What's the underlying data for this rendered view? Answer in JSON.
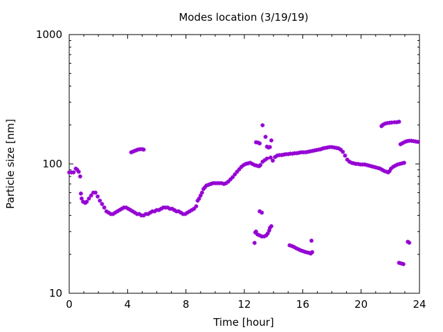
{
  "chart_data": {
    "type": "scatter",
    "title": "Modes location (3/19/19)",
    "xlabel": "Time [hour]",
    "ylabel": "Particle size [nm]",
    "xlim": [
      0,
      24
    ],
    "ylim": [
      10,
      1000
    ],
    "y_scale": "log",
    "x_ticks": [
      0,
      4,
      8,
      12,
      16,
      20,
      24
    ],
    "x_tick_labels": [
      "0",
      "4",
      "8",
      "12",
      "16",
      "20",
      "24"
    ],
    "y_ticks": [
      10,
      100,
      1000
    ],
    "y_tick_labels": [
      "10",
      "100",
      "1000"
    ],
    "grid": false,
    "legend": "none",
    "marker_color": "#9400d3",
    "series": [
      {
        "points": [
          [
            0.0,
            86
          ],
          [
            0.15,
            86
          ],
          [
            0.3,
            86
          ],
          [
            0.45,
            92
          ],
          [
            0.55,
            90
          ],
          [
            0.65,
            87
          ],
          [
            0.75,
            80
          ],
          [
            0.8,
            59
          ],
          [
            0.85,
            54
          ],
          [
            0.95,
            51
          ],
          [
            1.1,
            50
          ],
          [
            1.2,
            51
          ],
          [
            1.35,
            54
          ],
          [
            1.5,
            57
          ],
          [
            1.65,
            60
          ],
          [
            1.8,
            60
          ],
          [
            1.95,
            56
          ],
          [
            2.1,
            52
          ],
          [
            2.25,
            49
          ],
          [
            2.4,
            46
          ],
          [
            2.55,
            43
          ],
          [
            2.7,
            42
          ],
          [
            2.85,
            41
          ],
          [
            3.0,
            41
          ],
          [
            3.15,
            42
          ],
          [
            3.3,
            43
          ],
          [
            3.45,
            44
          ],
          [
            3.6,
            45
          ],
          [
            3.75,
            46
          ],
          [
            3.9,
            46
          ],
          [
            4.05,
            45
          ],
          [
            4.2,
            44
          ],
          [
            4.35,
            43
          ],
          [
            4.5,
            42
          ],
          [
            4.65,
            41
          ],
          [
            4.8,
            41
          ],
          [
            4.95,
            40
          ],
          [
            5.1,
            40
          ],
          [
            5.25,
            41
          ],
          [
            5.4,
            41
          ],
          [
            5.55,
            42
          ],
          [
            5.7,
            43
          ],
          [
            5.85,
            43
          ],
          [
            6.0,
            44
          ],
          [
            6.15,
            44
          ],
          [
            6.3,
            45
          ],
          [
            6.45,
            46
          ],
          [
            6.6,
            46
          ],
          [
            6.75,
            46
          ],
          [
            6.9,
            45
          ],
          [
            7.05,
            45
          ],
          [
            7.2,
            44
          ],
          [
            7.35,
            43
          ],
          [
            7.5,
            43
          ],
          [
            7.65,
            42
          ],
          [
            7.8,
            41
          ],
          [
            7.95,
            41
          ],
          [
            8.1,
            42
          ],
          [
            8.25,
            43
          ],
          [
            8.4,
            44
          ],
          [
            8.55,
            45
          ],
          [
            8.7,
            47
          ],
          [
            8.8,
            52
          ],
          [
            8.9,
            54
          ],
          [
            9.0,
            57
          ],
          [
            9.1,
            60
          ],
          [
            9.2,
            64
          ],
          [
            9.3,
            66
          ],
          [
            9.4,
            68
          ],
          [
            9.55,
            69
          ],
          [
            9.7,
            70
          ],
          [
            9.85,
            71
          ],
          [
            10.0,
            71
          ],
          [
            10.15,
            71
          ],
          [
            10.3,
            71
          ],
          [
            10.45,
            71
          ],
          [
            10.6,
            70
          ],
          [
            10.75,
            71
          ],
          [
            10.9,
            73
          ],
          [
            11.05,
            76
          ],
          [
            11.2,
            79
          ],
          [
            11.35,
            83
          ],
          [
            11.5,
            87
          ],
          [
            11.65,
            91
          ],
          [
            11.8,
            95
          ],
          [
            11.95,
            98
          ],
          [
            12.1,
            100
          ],
          [
            12.25,
            101
          ],
          [
            12.4,
            102
          ],
          [
            12.55,
            100
          ],
          [
            12.7,
            98
          ],
          [
            12.85,
            97
          ],
          [
            13.0,
            96
          ],
          [
            13.1,
            98
          ],
          [
            13.25,
            104
          ],
          [
            13.4,
            107
          ],
          [
            13.55,
            110
          ],
          [
            13.8,
            112
          ],
          [
            13.95,
            106
          ],
          [
            14.1,
            113
          ],
          [
            14.25,
            116
          ],
          [
            14.4,
            117
          ],
          [
            14.55,
            117
          ],
          [
            14.7,
            118
          ],
          [
            14.85,
            119
          ],
          [
            15.0,
            119
          ],
          [
            15.15,
            120
          ],
          [
            15.3,
            120
          ],
          [
            15.45,
            121
          ],
          [
            15.6,
            121
          ],
          [
            15.75,
            122
          ],
          [
            15.9,
            123
          ],
          [
            16.05,
            123
          ],
          [
            16.2,
            123
          ],
          [
            16.35,
            124
          ],
          [
            16.5,
            125
          ],
          [
            16.65,
            126
          ],
          [
            16.8,
            127
          ],
          [
            16.95,
            128
          ],
          [
            17.1,
            129
          ],
          [
            17.25,
            130
          ],
          [
            17.4,
            132
          ],
          [
            17.55,
            133
          ],
          [
            17.7,
            134
          ],
          [
            17.85,
            135
          ],
          [
            18.0,
            135
          ],
          [
            18.15,
            134
          ],
          [
            18.3,
            133
          ],
          [
            18.45,
            132
          ],
          [
            18.6,
            129
          ],
          [
            18.75,
            124
          ],
          [
            18.9,
            116
          ],
          [
            19.05,
            108
          ],
          [
            19.2,
            104
          ],
          [
            19.35,
            102
          ],
          [
            19.5,
            101
          ],
          [
            19.65,
            100
          ],
          [
            19.8,
            100
          ],
          [
            19.95,
            99
          ],
          [
            20.1,
            99
          ],
          [
            20.25,
            99
          ],
          [
            20.4,
            98
          ],
          [
            20.55,
            97
          ],
          [
            20.7,
            96
          ],
          [
            20.85,
            95
          ],
          [
            21.0,
            94
          ],
          [
            21.15,
            93
          ],
          [
            21.3,
            92
          ],
          [
            21.45,
            90
          ],
          [
            21.6,
            88
          ],
          [
            21.75,
            87
          ],
          [
            21.85,
            86
          ],
          [
            21.95,
            88
          ],
          [
            22.05,
            92
          ],
          [
            22.2,
            95
          ],
          [
            22.35,
            97
          ],
          [
            22.5,
            99
          ],
          [
            22.65,
            100
          ],
          [
            22.8,
            101
          ],
          [
            22.95,
            102
          ],
          [
            4.25,
            123
          ],
          [
            4.4,
            125
          ],
          [
            4.55,
            127
          ],
          [
            4.7,
            129
          ],
          [
            4.85,
            130
          ],
          [
            5.0,
            130
          ],
          [
            5.1,
            129
          ],
          [
            12.8,
            147
          ],
          [
            12.95,
            146
          ],
          [
            13.05,
            144
          ],
          [
            13.25,
            199
          ],
          [
            13.45,
            162
          ],
          [
            13.55,
            136
          ],
          [
            13.65,
            134
          ],
          [
            13.75,
            135
          ],
          [
            13.85,
            152
          ],
          [
            21.4,
            196
          ],
          [
            21.5,
            201
          ],
          [
            21.65,
            205
          ],
          [
            21.8,
            207
          ],
          [
            21.95,
            208
          ],
          [
            22.1,
            209
          ],
          [
            22.3,
            210
          ],
          [
            22.45,
            210
          ],
          [
            22.6,
            212
          ],
          [
            22.7,
            142
          ],
          [
            22.85,
            145
          ],
          [
            23.0,
            148
          ],
          [
            23.15,
            150
          ],
          [
            23.3,
            151
          ],
          [
            23.45,
            151
          ],
          [
            23.6,
            150
          ],
          [
            23.75,
            149
          ],
          [
            23.9,
            148
          ],
          [
            12.7,
            24.5
          ],
          [
            12.75,
            29.5
          ],
          [
            12.8,
            30
          ],
          [
            12.9,
            28.5
          ],
          [
            13.05,
            28
          ],
          [
            13.2,
            27.5
          ],
          [
            13.35,
            27.5
          ],
          [
            13.5,
            28
          ],
          [
            13.6,
            29
          ],
          [
            13.7,
            30.5
          ],
          [
            13.75,
            32
          ],
          [
            13.85,
            33
          ],
          [
            13.05,
            43
          ],
          [
            13.2,
            42
          ],
          [
            15.1,
            23.5
          ],
          [
            15.25,
            23.2
          ],
          [
            15.4,
            22.8
          ],
          [
            15.55,
            22.3
          ],
          [
            15.7,
            21.9
          ],
          [
            15.85,
            21.5
          ],
          [
            16.0,
            21.2
          ],
          [
            16.15,
            20.9
          ],
          [
            16.3,
            20.7
          ],
          [
            16.45,
            20.5
          ],
          [
            16.55,
            20.3
          ],
          [
            16.65,
            20.8
          ],
          [
            16.6,
            25.5
          ],
          [
            22.6,
            17.2
          ],
          [
            22.75,
            17.0
          ],
          [
            22.9,
            16.8
          ],
          [
            23.2,
            25
          ],
          [
            23.3,
            24.6
          ]
        ]
      }
    ]
  }
}
